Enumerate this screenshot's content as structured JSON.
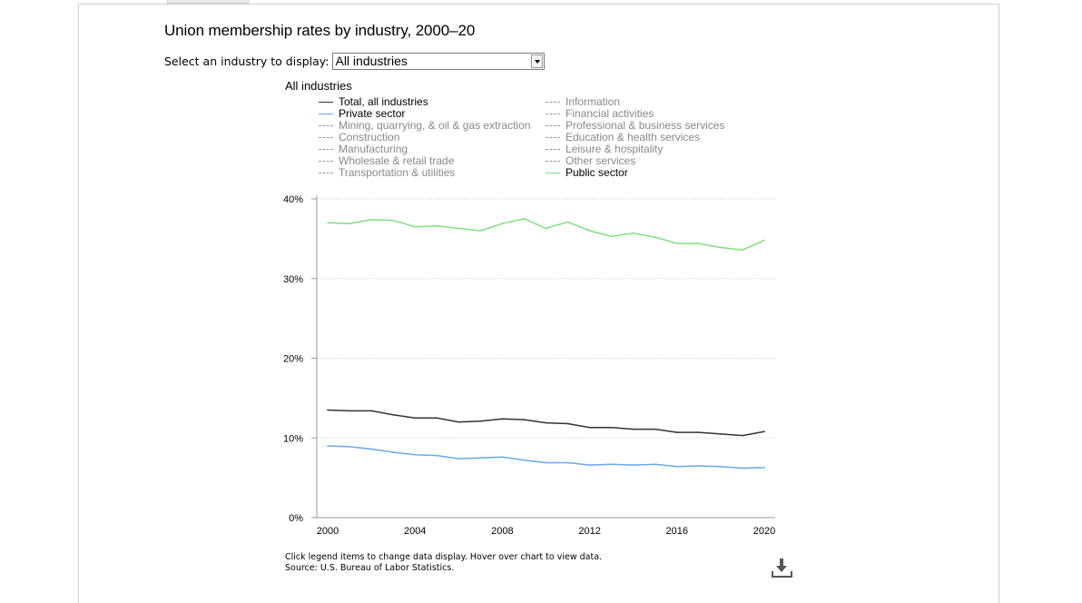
{
  "title": "Union membership rates by industry, 2000–20",
  "selector": {
    "label": "Select an industry to display:",
    "value": "All industries"
  },
  "chart_heading": "All industries",
  "legend": {
    "left": [
      {
        "label": "Total, all industries",
        "active": true,
        "color": "#333333"
      },
      {
        "label": "Private sector",
        "active": true,
        "color": "#6aa9e9"
      },
      {
        "label": "Mining, quarrying, & oil & gas extraction",
        "active": false,
        "color": "#999999"
      },
      {
        "label": "Construction",
        "active": false,
        "color": "#999999"
      },
      {
        "label": "Manufacturing",
        "active": false,
        "color": "#999999"
      },
      {
        "label": "Wholesale & retail trade",
        "active": false,
        "color": "#999999"
      },
      {
        "label": "Transportation & utilities",
        "active": false,
        "color": "#999999"
      }
    ],
    "right": [
      {
        "label": "Information",
        "active": false,
        "color": "#999999"
      },
      {
        "label": "Financial activities",
        "active": false,
        "color": "#999999"
      },
      {
        "label": "Professional & business services",
        "active": false,
        "color": "#999999"
      },
      {
        "label": "Education & health services",
        "active": false,
        "color": "#999999"
      },
      {
        "label": "Leisure & hospitality",
        "active": false,
        "color": "#999999"
      },
      {
        "label": "Other services",
        "active": false,
        "color": "#999999"
      },
      {
        "label": "Public sector",
        "active": true,
        "color": "#7ee07e"
      }
    ]
  },
  "footnote": {
    "line1": "Click legend items to change data display. Hover over chart to view data.",
    "line2": "Source: U.S. Bureau of Labor Statistics."
  },
  "download_icon": "download-icon",
  "chart_data": {
    "type": "line",
    "x": [
      2000,
      2001,
      2002,
      2003,
      2004,
      2005,
      2006,
      2007,
      2008,
      2009,
      2010,
      2011,
      2012,
      2013,
      2014,
      2015,
      2016,
      2017,
      2018,
      2019,
      2020
    ],
    "xticks": [
      "2000",
      "2004",
      "2008",
      "2012",
      "2016",
      "2020"
    ],
    "yticks": [
      "0%",
      "10%",
      "20%",
      "30%",
      "40%"
    ],
    "ylim": [
      0,
      40
    ],
    "grid": true,
    "series": [
      {
        "name": "Public sector",
        "color": "#7ee07e",
        "values": [
          37.0,
          36.9,
          37.4,
          37.3,
          36.5,
          36.6,
          36.3,
          36.0,
          36.9,
          37.5,
          36.3,
          37.1,
          36.0,
          35.3,
          35.7,
          35.2,
          34.4,
          34.4,
          33.9,
          33.6,
          34.8
        ]
      },
      {
        "name": "Total, all industries",
        "color": "#333333",
        "values": [
          13.5,
          13.4,
          13.4,
          12.9,
          12.5,
          12.5,
          12.0,
          12.1,
          12.4,
          12.3,
          11.9,
          11.8,
          11.3,
          11.3,
          11.1,
          11.1,
          10.7,
          10.7,
          10.5,
          10.3,
          10.8
        ]
      },
      {
        "name": "Private sector",
        "color": "#6aa9e9",
        "values": [
          9.0,
          8.9,
          8.6,
          8.2,
          7.9,
          7.8,
          7.4,
          7.5,
          7.6,
          7.2,
          6.9,
          6.9,
          6.6,
          6.7,
          6.6,
          6.7,
          6.4,
          6.5,
          6.4,
          6.2,
          6.3
        ]
      }
    ]
  }
}
